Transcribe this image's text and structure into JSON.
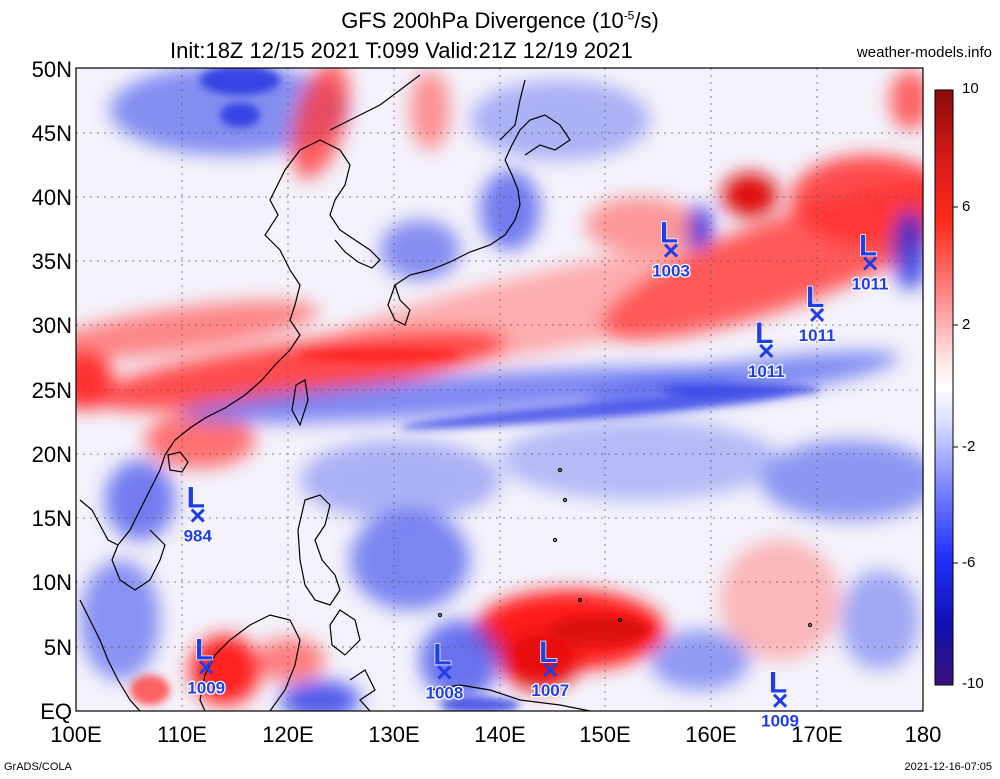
{
  "title": {
    "line1_prefix": "GFS 200hPa Divergence (10",
    "line1_exp": "-5",
    "line1_suffix": "/s)",
    "line2": "Init:18Z 12/15 2021 T:099 Valid:21Z 12/19 2021"
  },
  "site": "weather-models.info",
  "credit": "GrADS/COLA",
  "stamp": "2021-12-16-07:05",
  "colors": {
    "divergence": "#ee1c1c",
    "convergence": "#1e2ee8",
    "marker": "#1f3ee6",
    "coast": "#000000"
  },
  "lat_labels": [
    "50N",
    "45N",
    "40N",
    "35N",
    "30N",
    "25N",
    "20N",
    "15N",
    "10N",
    "5N",
    "EQ"
  ],
  "lon_labels": [
    "100E",
    "110E",
    "120E",
    "130E",
    "140E",
    "150E",
    "160E",
    "170E",
    "180"
  ],
  "colorbar": {
    "labels": [
      "10",
      "6",
      "2",
      "-2",
      "-6",
      "-10"
    ],
    "range": [
      -10,
      10
    ]
  },
  "lows": [
    {
      "lon": 166.5,
      "lat": 0.8,
      "pressure": "1009"
    },
    {
      "lon": 144.8,
      "lat": 3.2,
      "pressure": "1007"
    },
    {
      "lon": 134.8,
      "lat": 3.0,
      "pressure": "1008"
    },
    {
      "lon": 112.3,
      "lat": 3.4,
      "pressure": "1009"
    },
    {
      "lon": 111.5,
      "lat": 15.2,
      "pressure": "984"
    },
    {
      "lon": 165.2,
      "lat": 28.0,
      "pressure": "1011"
    },
    {
      "lon": 170.0,
      "lat": 30.8,
      "pressure": "1011"
    },
    {
      "lon": 175.0,
      "lat": 34.8,
      "pressure": "1011"
    },
    {
      "lon": 156.2,
      "lat": 35.8,
      "pressure": "1003"
    }
  ]
}
